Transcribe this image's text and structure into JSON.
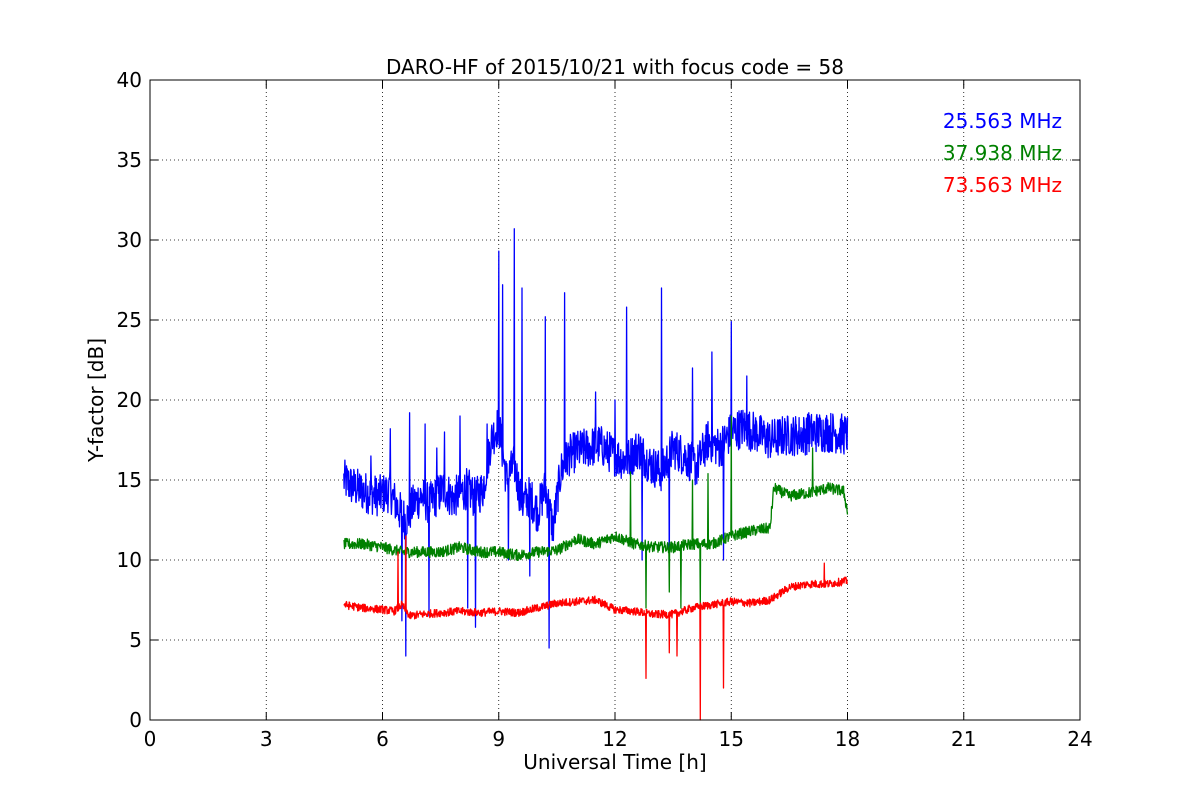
{
  "chart_data": {
    "type": "line",
    "title": "DARO-HF of 2015/10/21 with focus code = 58",
    "xlabel": "Universal Time [h]",
    "ylabel": "Y-factor [dB]",
    "xlim": [
      0,
      24
    ],
    "ylim": [
      0,
      40
    ],
    "xticks": [
      0,
      3,
      6,
      9,
      12,
      15,
      18,
      21,
      24
    ],
    "yticks": [
      0,
      5,
      10,
      15,
      20,
      25,
      30,
      35,
      40
    ],
    "grid": true,
    "legend_position": "top-right",
    "series": [
      {
        "name": "25.563 MHz",
        "color": "#0000ff",
        "x": [
          5.0,
          5.3,
          5.6,
          5.9,
          6.2,
          6.4,
          6.6,
          6.8,
          7.0,
          7.2,
          7.4,
          7.6,
          7.8,
          8.0,
          8.2,
          8.4,
          8.6,
          8.8,
          9.0,
          9.2,
          9.4,
          9.6,
          9.8,
          10.0,
          10.2,
          10.4,
          10.6,
          10.8,
          11.0,
          11.3,
          11.6,
          12.0,
          12.3,
          12.6,
          12.9,
          13.2,
          13.5,
          13.8,
          14.1,
          14.4,
          14.7,
          15.0,
          15.3,
          15.6,
          16.0,
          16.4,
          16.8,
          17.2,
          17.6,
          18.0
        ],
        "values": [
          15.0,
          14.5,
          14.2,
          14.0,
          14.3,
          13.2,
          12.5,
          13.5,
          14.0,
          13.5,
          14.0,
          14.5,
          13.8,
          14.2,
          14.5,
          13.8,
          14.5,
          17.5,
          18.5,
          15.0,
          16.0,
          13.5,
          14.0,
          13.0,
          14.5,
          12.0,
          15.5,
          16.5,
          16.8,
          17.0,
          17.2,
          16.5,
          16.2,
          17.0,
          16.0,
          15.5,
          17.0,
          16.5,
          15.8,
          17.5,
          17.0,
          18.0,
          18.3,
          18.0,
          17.5,
          17.8,
          17.8,
          18.0,
          18.0,
          17.8
        ],
        "spikes": [
          [
            5.7,
            16.5
          ],
          [
            6.2,
            18.2
          ],
          [
            6.5,
            6.2
          ],
          [
            6.6,
            4.0
          ],
          [
            6.7,
            19.2
          ],
          [
            7.1,
            18.5
          ],
          [
            7.2,
            6.5
          ],
          [
            7.4,
            17.0
          ],
          [
            7.6,
            18.0
          ],
          [
            8.0,
            19.0
          ],
          [
            8.2,
            7.0
          ],
          [
            8.4,
            5.8
          ],
          [
            8.7,
            18.5
          ],
          [
            9.0,
            29.3
          ],
          [
            9.1,
            27.2
          ],
          [
            9.25,
            10.0
          ],
          [
            9.4,
            30.7
          ],
          [
            9.6,
            27.0
          ],
          [
            9.8,
            9.0
          ],
          [
            10.2,
            25.2
          ],
          [
            10.3,
            4.5
          ],
          [
            10.7,
            26.7
          ],
          [
            11.5,
            20.5
          ],
          [
            12.0,
            20.0
          ],
          [
            12.3,
            25.8
          ],
          [
            12.7,
            10.0
          ],
          [
            13.2,
            27.0
          ],
          [
            13.4,
            9.0
          ],
          [
            14.0,
            22.0
          ],
          [
            14.5,
            23.0
          ],
          [
            14.8,
            10.0
          ],
          [
            15.0,
            24.9
          ],
          [
            15.4,
            21.5
          ],
          [
            17.0,
            19.2
          ]
        ]
      },
      {
        "name": "37.938 MHz",
        "color": "#008000",
        "x": [
          5.0,
          5.5,
          6.0,
          6.5,
          7.0,
          7.5,
          8.0,
          8.5,
          9.0,
          9.5,
          10.0,
          10.5,
          11.0,
          11.5,
          12.0,
          12.5,
          13.0,
          13.5,
          14.0,
          14.5,
          15.0,
          15.5,
          16.0,
          16.1,
          16.5,
          17.0,
          17.5,
          17.9,
          18.0
        ],
        "values": [
          11.0,
          11.0,
          10.8,
          10.5,
          10.5,
          10.5,
          10.8,
          10.5,
          10.5,
          10.3,
          10.5,
          10.6,
          11.3,
          11.0,
          11.5,
          11.0,
          10.8,
          10.8,
          11.0,
          11.0,
          11.5,
          11.8,
          12.0,
          14.5,
          14.0,
          14.2,
          14.5,
          14.3,
          13.0
        ],
        "spikes": [
          [
            12.4,
            15.5
          ],
          [
            12.8,
            7.0
          ],
          [
            13.4,
            8.0
          ],
          [
            13.7,
            7.0
          ],
          [
            14.0,
            15.0
          ],
          [
            14.2,
            7.0
          ],
          [
            14.4,
            15.4
          ],
          [
            15.0,
            19.0
          ],
          [
            17.1,
            17.0
          ]
        ]
      },
      {
        "name": "73.563 MHz",
        "color": "#ff0000",
        "x": [
          5.0,
          5.5,
          6.0,
          6.3,
          6.5,
          6.7,
          7.0,
          7.5,
          8.0,
          8.5,
          9.0,
          9.5,
          10.0,
          10.5,
          11.0,
          11.5,
          12.0,
          12.5,
          13.0,
          13.5,
          14.0,
          14.5,
          15.0,
          15.5,
          16.0,
          16.5,
          17.0,
          17.5,
          18.0
        ],
        "values": [
          7.2,
          7.0,
          6.9,
          6.8,
          7.2,
          6.5,
          6.6,
          6.7,
          6.8,
          6.7,
          6.8,
          6.7,
          7.0,
          7.3,
          7.4,
          7.5,
          6.9,
          6.8,
          6.6,
          6.6,
          7.0,
          7.2,
          7.4,
          7.3,
          7.5,
          8.3,
          8.5,
          8.5,
          8.7
        ],
        "spikes": [
          [
            6.4,
            10.5
          ],
          [
            6.6,
            11.5
          ],
          [
            12.8,
            2.6
          ],
          [
            13.4,
            4.2
          ],
          [
            13.6,
            4.0
          ],
          [
            14.2,
            0.0
          ],
          [
            14.8,
            2.0
          ],
          [
            17.4,
            9.8
          ]
        ]
      }
    ]
  }
}
